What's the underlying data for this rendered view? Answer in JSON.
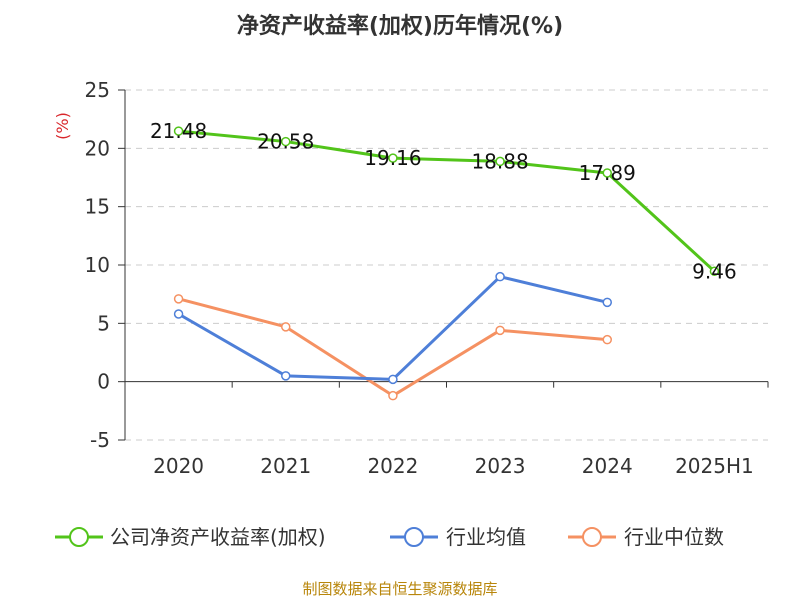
{
  "chart_data": {
    "type": "line",
    "title": "净资产收益率(加权)历年情况(%)",
    "ylabel": "(%)",
    "xlabel": "",
    "categories": [
      "2020",
      "2021",
      "2022",
      "2023",
      "2024",
      "2025H1"
    ],
    "ylim": [
      -5,
      25
    ],
    "yticks": [
      -5,
      0,
      5,
      10,
      15,
      20,
      25
    ],
    "grid": "horizontal dashed",
    "legend_position": "bottom",
    "series": [
      {
        "name": "公司净资产收益率(加权)",
        "color": "#52c41a",
        "values": [
          21.48,
          20.58,
          19.16,
          18.88,
          17.89,
          9.46
        ],
        "show_labels": true
      },
      {
        "name": "行业均值",
        "color": "#4e7fd8",
        "values": [
          5.8,
          0.5,
          0.2,
          9.0,
          6.8,
          null
        ],
        "show_labels": false
      },
      {
        "name": "行业中位数",
        "color": "#f59162",
        "values": [
          7.1,
          4.7,
          -1.2,
          4.4,
          3.6,
          null
        ],
        "show_labels": false
      }
    ],
    "source": "制图数据来自恒生聚源数据库"
  }
}
